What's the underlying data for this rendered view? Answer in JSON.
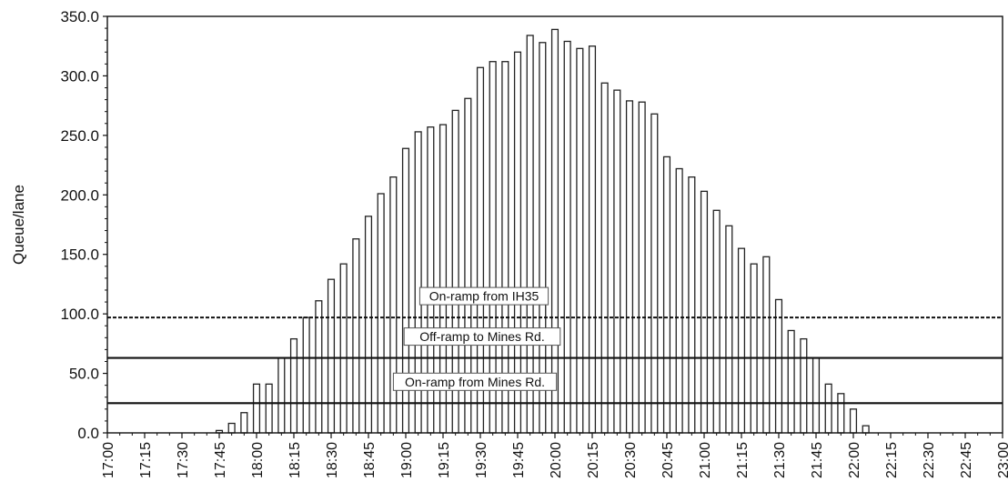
{
  "chart_data": {
    "type": "bar",
    "title": "",
    "xlabel": "",
    "ylabel": "Queue/lane",
    "ylim": [
      0,
      350
    ],
    "yticks": [
      "0.0",
      "50.0",
      "100.0",
      "150.0",
      "200.0",
      "250.0",
      "300.0",
      "350.0"
    ],
    "xticks": [
      "17:00",
      "17:15",
      "17:30",
      "17:45",
      "18:00",
      "18:15",
      "18:30",
      "18:45",
      "19:00",
      "19:15",
      "19:30",
      "19:45",
      "20:00",
      "20:15",
      "20:30",
      "20:45",
      "21:00",
      "21:15",
      "21:30",
      "21:45",
      "22:00",
      "22:15",
      "22:30",
      "22:45",
      "23:00"
    ],
    "x_start": "17:00",
    "x_end": "23:00",
    "bar_interval_minutes": 5,
    "categories": [
      "17:00",
      "17:05",
      "17:10",
      "17:15",
      "17:20",
      "17:25",
      "17:30",
      "17:35",
      "17:40",
      "17:45",
      "17:50",
      "17:55",
      "18:00",
      "18:05",
      "18:10",
      "18:15",
      "18:20",
      "18:25",
      "18:30",
      "18:35",
      "18:40",
      "18:45",
      "18:50",
      "18:55",
      "19:00",
      "19:05",
      "19:10",
      "19:15",
      "19:20",
      "19:25",
      "19:30",
      "19:35",
      "19:40",
      "19:45",
      "19:50",
      "19:55",
      "20:00",
      "20:05",
      "20:10",
      "20:15",
      "20:20",
      "20:25",
      "20:30",
      "20:35",
      "20:40",
      "20:45",
      "20:50",
      "20:55",
      "21:00",
      "21:05",
      "21:10",
      "21:15",
      "21:20",
      "21:25",
      "21:30",
      "21:35",
      "21:40",
      "21:45",
      "21:50",
      "21:55",
      "22:00",
      "22:05",
      "22:10",
      "22:15",
      "22:20",
      "22:25",
      "22:30",
      "22:35",
      "22:40",
      "22:45",
      "22:50",
      "22:55",
      "23:00"
    ],
    "values": [
      0,
      0,
      0,
      0,
      0,
      0,
      0,
      0,
      0,
      2,
      8,
      17,
      41,
      41,
      63,
      79,
      97,
      111,
      129,
      142,
      163,
      182,
      201,
      215,
      239,
      253,
      257,
      259,
      271,
      281,
      307,
      312,
      312,
      320,
      334,
      328,
      339,
      329,
      323,
      325,
      294,
      288,
      279,
      278,
      268,
      232,
      222,
      215,
      203,
      187,
      174,
      155,
      142,
      148,
      112,
      86,
      79,
      63,
      41,
      33,
      20,
      6,
      0,
      0,
      0,
      0,
      0,
      0,
      0,
      0,
      0,
      0,
      0
    ],
    "reference_lines": [
      {
        "label": "On-ramp from IH35",
        "value": 97,
        "style": "dashed"
      },
      {
        "label": "Off-ramp to Mines Rd.",
        "value": 63,
        "style": "solid"
      },
      {
        "label": "On-ramp from Mines Rd.",
        "value": 25,
        "style": "solid"
      }
    ],
    "grid": false,
    "legend": "none"
  }
}
